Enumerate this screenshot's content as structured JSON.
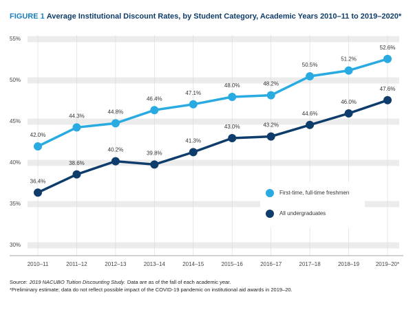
{
  "chart_data": {
    "type": "line",
    "figure_label": "FIGURE 1",
    "title": "Average Institutional Discount Rates, by Student Category, Academic Years 2010–11 to 2019–2020*",
    "categories": [
      "2010–11",
      "2011–12",
      "2012–13",
      "2013–14",
      "2014–15",
      "2015–16",
      "2016–17",
      "2017–18",
      "2018–19",
      "2019–20*"
    ],
    "series": [
      {
        "name": "First-time, full-time freshmen",
        "color": "#29abe2",
        "values": [
          42.0,
          44.3,
          44.8,
          46.4,
          47.1,
          48.0,
          48.2,
          50.5,
          51.2,
          52.6
        ],
        "value_labels": [
          "42.0%",
          "44.3%",
          "44.8%",
          "46.4%",
          "47.1%",
          "48.0%",
          "48.2%",
          "50.5%",
          "51.2%",
          "52.6%"
        ]
      },
      {
        "name": "All undergraduates",
        "color": "#0f3d6b",
        "values": [
          36.4,
          38.6,
          40.2,
          39.8,
          41.3,
          43.0,
          43.2,
          44.6,
          46.0,
          47.6
        ],
        "value_labels": [
          "36.4%",
          "38.6%",
          "40.2%",
          "39.8%",
          "41.3%",
          "43.0%",
          "43.2%",
          "44.6%",
          "46.0%",
          "47.6%"
        ]
      }
    ],
    "ylim": [
      30,
      55
    ],
    "yticks": [
      {
        "value": 30,
        "label": "30%"
      },
      {
        "value": 35,
        "label": "35%"
      },
      {
        "value": 40,
        "label": "40%"
      },
      {
        "value": 45,
        "label": "45%"
      },
      {
        "value": 50,
        "label": "50%"
      },
      {
        "value": 55,
        "label": "55%"
      }
    ],
    "grid": true,
    "legend": "lower right",
    "source": {
      "label": "Source:",
      "title": "2019 NACUBO Tuition Discounting Study.",
      "text": "Data are as of the fall of each academic year."
    },
    "note": "*Preliminary estimate; data do not reflect possible impact of the COVID-19 pandemic on institutional aid awards in 2019–20."
  }
}
